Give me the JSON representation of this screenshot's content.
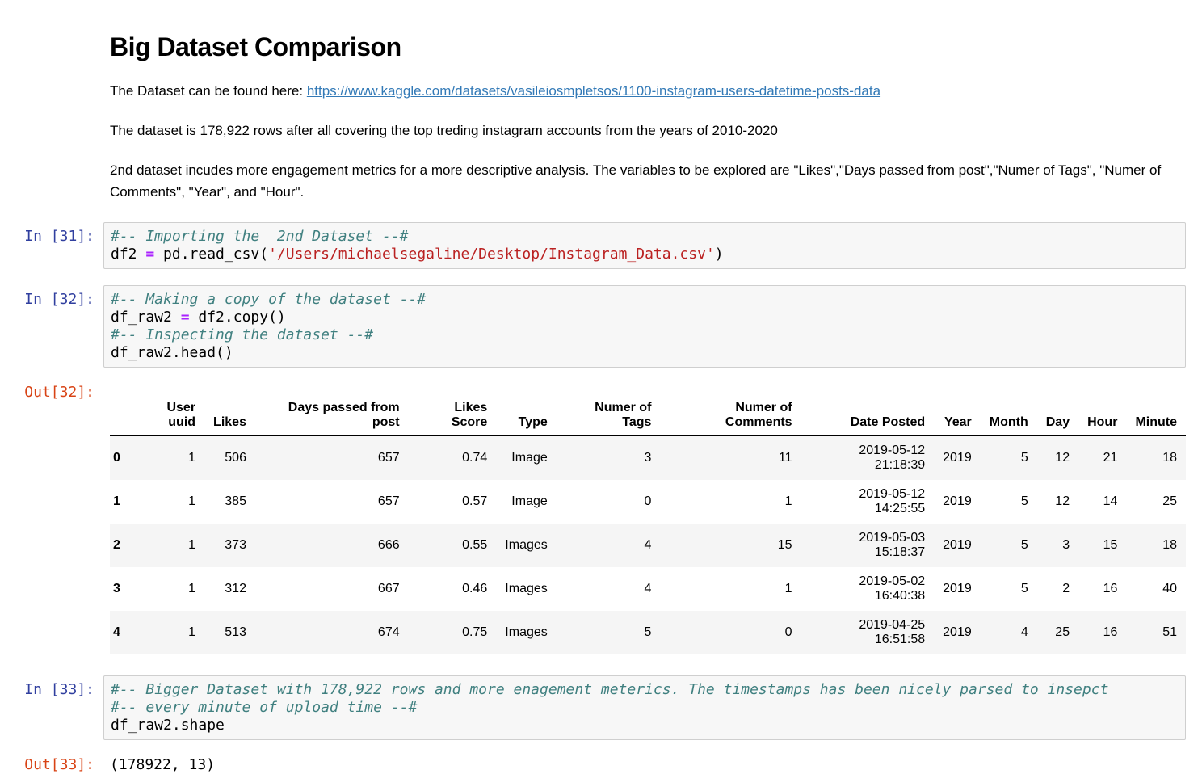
{
  "markdown": {
    "title": "Big Dataset Comparison",
    "link_intro": "The Dataset can be found here: ",
    "link_text": "https://www.kaggle.com/datasets/vasileiosmpletsos/1100-instagram-users-datetime-posts-data",
    "link_href": "https://www.kaggle.com/datasets/vasileiosmpletsos/1100-instagram-users-datetime-posts-data",
    "para_rows": "The dataset is 178,922 rows after all covering the top treding instagram accounts from the years of 2010-2020",
    "para_variables": "2nd dataset incudes more engagement metrics for a more descriptive analysis. The variables to be explored are \"Likes\",\"Days passed from post\",\"Numer of Tags\", \"Numer of Comments\", \"Year\", and \"Hour\"."
  },
  "colors": {
    "in_prompt": "#303F9F",
    "out_prompt": "#D84315",
    "comment": "#408080",
    "operator": "#AA22FF",
    "string": "#BA2121",
    "link": "#337ab7",
    "cell_background": "#f7f7f7",
    "cell_border": "#cfcfcf",
    "table_alt_row": "#f5f5f5"
  },
  "code_cells": [
    {
      "prompt": "In [31]:",
      "lines": [
        [
          {
            "t": "comment",
            "v": "#-- Importing the  2nd Dataset --#"
          }
        ],
        [
          {
            "t": "plain",
            "v": "df2 "
          },
          {
            "t": "op",
            "v": "="
          },
          {
            "t": "plain",
            "v": " pd.read_csv("
          },
          {
            "t": "string",
            "v": "'/Users/michaelsegaline/Desktop/Instagram_Data.csv'"
          },
          {
            "t": "plain",
            "v": ")"
          }
        ]
      ]
    },
    {
      "prompt": "In [32]:",
      "lines": [
        [
          {
            "t": "comment",
            "v": "#-- Making a copy of the dataset --#"
          }
        ],
        [
          {
            "t": "plain",
            "v": "df_raw2 "
          },
          {
            "t": "op",
            "v": "="
          },
          {
            "t": "plain",
            "v": " df2.copy()"
          }
        ],
        [
          {
            "t": "comment",
            "v": "#-- Inspecting the dataset --#"
          }
        ],
        [
          {
            "t": "plain",
            "v": "df_raw2.head()"
          }
        ]
      ]
    },
    {
      "prompt": "In [33]:",
      "lines": [
        [
          {
            "t": "comment",
            "v": "#-- Bigger Dataset with 178,922 rows and more enagement meterics. The timestamps has been nicely parsed to insepct"
          }
        ],
        [
          {
            "t": "comment",
            "v": "#-- every minute of upload time --#"
          }
        ],
        [
          {
            "t": "plain",
            "v": "df_raw2.shape"
          }
        ]
      ]
    }
  ],
  "outputs": {
    "out32": {
      "prompt": "Out[32]:"
    },
    "out33": {
      "prompt": "Out[33]:",
      "text": "(178922, 13)"
    }
  },
  "table": {
    "columns": [
      "",
      "User uuid",
      "Likes",
      "Days passed from post",
      "Likes Score",
      "Type",
      "Numer of Tags",
      "Numer of Comments",
      "Date Posted",
      "Year",
      "Month",
      "Day",
      "Hour",
      "Minute"
    ],
    "rows": [
      [
        "0",
        "1",
        "506",
        "657",
        "0.74",
        "Image",
        "3",
        "11",
        "2019-05-12 21:18:39",
        "2019",
        "5",
        "12",
        "21",
        "18"
      ],
      [
        "1",
        "1",
        "385",
        "657",
        "0.57",
        "Image",
        "0",
        "1",
        "2019-05-12 14:25:55",
        "2019",
        "5",
        "12",
        "14",
        "25"
      ],
      [
        "2",
        "1",
        "373",
        "666",
        "0.55",
        "Images",
        "4",
        "15",
        "2019-05-03 15:18:37",
        "2019",
        "5",
        "3",
        "15",
        "18"
      ],
      [
        "3",
        "1",
        "312",
        "667",
        "0.46",
        "Images",
        "4",
        "1",
        "2019-05-02 16:40:38",
        "2019",
        "5",
        "2",
        "16",
        "40"
      ],
      [
        "4",
        "1",
        "513",
        "674",
        "0.75",
        "Images",
        "5",
        "0",
        "2019-04-25 16:51:58",
        "2019",
        "4",
        "25",
        "16",
        "51"
      ]
    ]
  }
}
